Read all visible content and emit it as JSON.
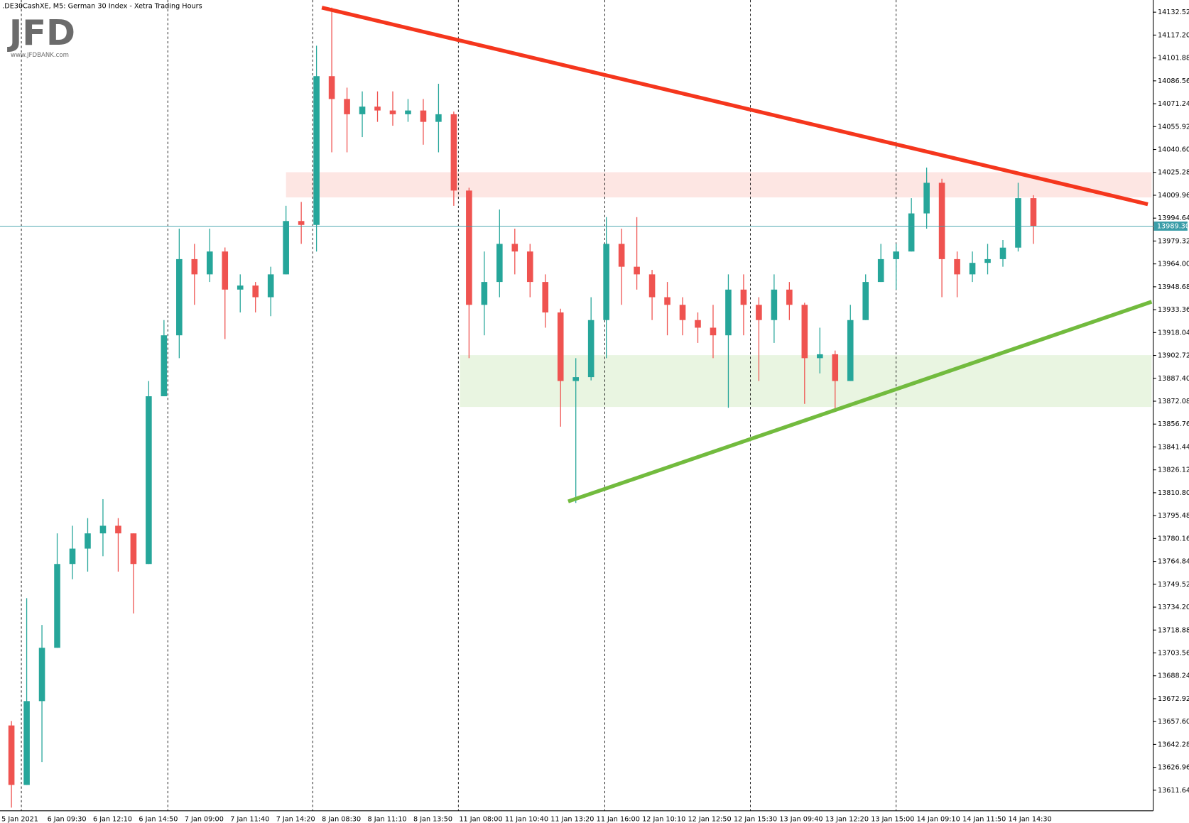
{
  "chart_data": {
    "type": "candlestick",
    "title": ".DE30CashXE, M5:  German 30 Index  - Xetra Trading Hours",
    "watermark": {
      "brand": "JFD",
      "url": "www.JFDBANK.com"
    },
    "up_color": "#26a69a",
    "down_color": "#ef5350",
    "categories": [
      "5 Jan 2021",
      null,
      null,
      "6 Jan 09:30",
      null,
      null,
      "6 Jan 12:10",
      null,
      null,
      "6 Jan 14:50",
      null,
      null,
      "7 Jan 09:00",
      null,
      null,
      "7 Jan 11:40",
      null,
      null,
      "7 Jan 14:20",
      null,
      null,
      "8 Jan 08:30",
      null,
      null,
      "8 Jan 11:10",
      null,
      null,
      "8 Jan 13:50",
      null,
      null,
      "11 Jan 08:00",
      null,
      null,
      "11 Jan 10:40",
      null,
      null,
      "11 Jan 13:20",
      null,
      null,
      "11 Jan 16:00",
      null,
      null,
      "12 Jan 10:10",
      null,
      null,
      "12 Jan 12:50",
      null,
      null,
      "12 Jan 15:30",
      null,
      null,
      "13 Jan 09:40",
      null,
      null,
      "13 Jan 12:20",
      null,
      null,
      "13 Jan 15:00",
      null,
      null,
      "14 Jan 09:10",
      null,
      null,
      "14 Jan 11:50",
      null,
      null,
      "14 Jan 14:30",
      null
    ],
    "open": [
      13655.0,
      13615.2,
      13671.3,
      13707.0,
      13763.1,
      13773.4,
      13783.6,
      13788.7,
      13783.6,
      13763.1,
      13875.4,
      13916.2,
      13967.2,
      13957.0,
      13972.3,
      13946.8,
      13949.5,
      13941.7,
      13957.0,
      13992.7,
      13990.1,
      14089.7,
      14074.4,
      14064.2,
      14069.3,
      14066.7,
      14064.2,
      14066.7,
      14059.1,
      14064.2,
      14013.1,
      13936.6,
      13951.9,
      13977.4,
      13972.3,
      13951.9,
      13931.5,
      13885.6,
      13888.2,
      13926.4,
      13977.4,
      13962.1,
      13957.0,
      13941.7,
      13936.6,
      13926.4,
      13921.3,
      13916.2,
      13946.8,
      13936.6,
      13926.4,
      13946.8,
      13936.6,
      13900.9,
      13903.5,
      13885.6,
      13926.4,
      13951.9,
      13967.2,
      13972.3,
      13997.8,
      14018.3,
      13967.2,
      13957.0,
      13964.7,
      13967.2,
      13974.9,
      14008.0
    ],
    "high": [
      13658.0,
      13740.2,
      13722.3,
      13783.6,
      13788.7,
      13793.8,
      13806.5,
      13793.8,
      13783.6,
      13885.6,
      13926.4,
      13987.6,
      13977.4,
      13987.6,
      13975.0,
      13957.0,
      13951.9,
      13962.1,
      14002.9,
      14005.5,
      14110.1,
      14135.6,
      14082.0,
      14079.5,
      14079.5,
      14079.5,
      14074.4,
      14074.4,
      14084.6,
      14066.0,
      14015.0,
      13972.3,
      14000.4,
      13987.6,
      13977.4,
      13957.0,
      13934.0,
      13900.9,
      13941.7,
      13995.3,
      13987.6,
      13995.3,
      13960.0,
      13951.9,
      13941.7,
      13931.5,
      13936.6,
      13957.0,
      13957.0,
      13941.7,
      13957.0,
      13951.9,
      13938.0,
      13921.3,
      13906.0,
      13936.6,
      13957.0,
      13977.4,
      13977.4,
      14008.0,
      14028.5,
      14021.0,
      13972.3,
      13972.3,
      13977.4,
      13980.0,
      14018.3,
      14010.0
    ],
    "low": [
      13600.0,
      13615.2,
      13630.5,
      13707.0,
      13752.9,
      13758.0,
      13768.3,
      13758.0,
      13730.0,
      13763.1,
      13875.4,
      13900.9,
      13936.6,
      13951.9,
      13913.7,
      13931.5,
      13931.5,
      13929.0,
      13957.0,
      13977.4,
      13972.3,
      14038.7,
      14038.7,
      14048.9,
      14059.1,
      14056.5,
      14059.1,
      14043.8,
      14038.7,
      14002.9,
      13900.9,
      13916.2,
      13941.7,
      13957.0,
      13941.7,
      13921.3,
      13855.0,
      13804.0,
      13886.0,
      13900.9,
      13936.6,
      13946.8,
      13926.4,
      13916.2,
      13916.2,
      13911.1,
      13900.9,
      13867.7,
      13916.2,
      13885.6,
      13911.1,
      13926.4,
      13870.3,
      13890.7,
      13865.2,
      13885.6,
      13926.4,
      13951.9,
      13946.8,
      13972.3,
      13987.6,
      13941.7,
      13941.7,
      13951.9,
      13957.0,
      13962.1,
      13972.3,
      13977.4
    ],
    "close": [
      13615.2,
      13671.3,
      13707.0,
      13763.1,
      13773.4,
      13783.6,
      13788.7,
      13783.6,
      13763.1,
      13875.4,
      13916.2,
      13967.2,
      13957.0,
      13972.3,
      13946.8,
      13949.5,
      13941.7,
      13957.0,
      13992.7,
      13990.1,
      14089.7,
      14074.4,
      14064.2,
      14069.3,
      14066.7,
      14064.2,
      14066.7,
      14059.1,
      14064.2,
      14013.1,
      13936.6,
      13951.9,
      13977.4,
      13972.3,
      13951.9,
      13931.5,
      13885.6,
      13888.2,
      13926.4,
      13977.4,
      13962.1,
      13957.0,
      13941.7,
      13936.6,
      13926.4,
      13921.3,
      13916.2,
      13946.8,
      13936.6,
      13926.4,
      13946.8,
      13936.6,
      13900.9,
      13903.5,
      13885.6,
      13926.4,
      13951.9,
      13967.2,
      13972.3,
      13997.8,
      14018.3,
      13967.2,
      13957.0,
      13964.7,
      13967.2,
      13974.9,
      14008.0,
      13989.3
    ],
    "price_line": {
      "value": 13989.3,
      "label": "13989.30"
    },
    "ylim": [
      13597.86,
      14140.68
    ],
    "yticks": [
      14132.52,
      {
        "value": 14117.2,
        "label": "14117.20"
      },
      14101.88,
      14086.56,
      14071.24,
      14055.92,
      {
        "value": 14040.6,
        "label": "14040.60"
      },
      14025.28,
      14009.96,
      13994.64,
      13979.32,
      {
        "value": 13964,
        "label": "13964.00"
      },
      13948.68,
      13933.36,
      13918.04,
      13902.72,
      {
        "value": 13887.4,
        "label": "13887.40"
      },
      13872.08,
      13856.76,
      13841.44,
      13826.12,
      {
        "value": 13810.8,
        "label": "13810.80"
      },
      13795.48,
      13780.16,
      13764.84,
      13749.52,
      {
        "value": 13734.2,
        "label": "13734.20"
      },
      13718.88,
      13703.56,
      13688.24,
      13672.92,
      {
        "value": 13657.6,
        "label": "13657.60"
      },
      13642.28,
      13626.96,
      13611.64
    ],
    "grid": false
  }
}
